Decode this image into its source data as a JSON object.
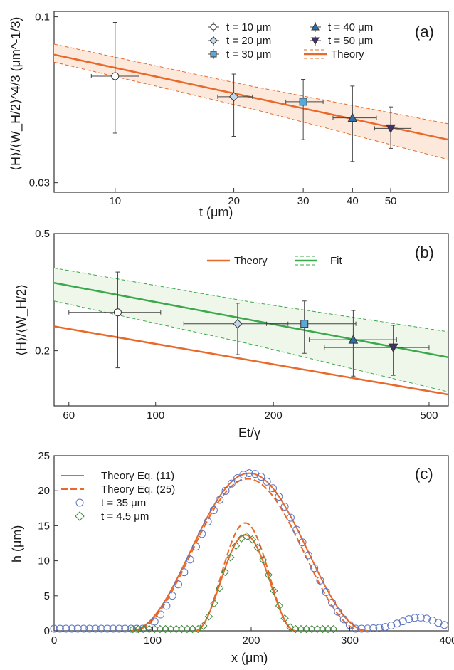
{
  "colors": {
    "theory": "#e8692a",
    "fit": "#3aa84b",
    "band_a": "#fde9dc",
    "band_b": "#eef7ea",
    "marker_t10": "#ffffff",
    "marker_t20": "#c4d6ea",
    "marker_t30": "#5ba8d6",
    "marker_t40": "#2f6fa8",
    "marker_t50": "#45306e",
    "marker_c_t35": "#5b74c0",
    "marker_c_t4_5": "#3f8a3a"
  },
  "chart_data": [
    {
      "type": "scatter",
      "panel_label": "(a)",
      "xlabel": "t (μm)",
      "ylabel": "⟨H⟩/⟨W_H/2⟩^4/3 (μm^-1/3)",
      "xscale": "log",
      "yscale": "log",
      "xlim": [
        7,
        70
      ],
      "ylim": [
        0.028,
        0.104
      ],
      "x_ticks": [
        "10",
        "20",
        "30",
        "40",
        "50"
      ],
      "y_ticks": [
        "0.1",
        "0.03"
      ],
      "legend_position": "top-right",
      "series": [
        {
          "name": "t = 10 μm",
          "marker": "circle",
          "points": [
            {
              "x": 10,
              "y": 0.065,
              "xerr": [
                8.7,
                11.5
              ],
              "yerr": [
                0.043,
                0.096
              ]
            }
          ]
        },
        {
          "name": "t = 20 μm",
          "marker": "diamond",
          "points": [
            {
              "x": 20,
              "y": 0.056,
              "xerr": [
                18.2,
                22.3
              ],
              "yerr": [
                0.042,
                0.066
              ]
            }
          ]
        },
        {
          "name": "t = 30 μm",
          "marker": "square",
          "points": [
            {
              "x": 30,
              "y": 0.054,
              "xerr": [
                27.1,
                33.7
              ],
              "yerr": [
                0.041,
                0.0635
              ]
            }
          ]
        },
        {
          "name": "t = 40 μm",
          "marker": "triangle-up",
          "points": [
            {
              "x": 40,
              "y": 0.048,
              "xerr": [
                35.7,
                46.0
              ],
              "yerr": [
                0.035,
                0.0605
              ]
            }
          ]
        },
        {
          "name": "t = 50 μm",
          "marker": "triangle-down",
          "points": [
            {
              "x": 50,
              "y": 0.0445,
              "xerr": [
                45.5,
                56.3
              ],
              "yerr": [
                0.0385,
                0.052
              ]
            }
          ]
        }
      ],
      "theory": {
        "name": "Theory",
        "x": [
          7,
          70
        ],
        "y": [
          0.076,
          0.041
        ],
        "band_lower": [
          0.072,
          0.0355
        ],
        "band_upper": [
          0.082,
          0.046
        ]
      }
    },
    {
      "type": "scatter",
      "panel_label": "(b)",
      "xlabel": "Et/γ",
      "ylabel": "⟨H⟩/⟨W_H/2⟩",
      "xscale": "log",
      "yscale": "log",
      "xlim": [
        55,
        560
      ],
      "ylim": [
        0.13,
        0.5
      ],
      "x_ticks": [
        "60",
        "100",
        "200",
        "500"
      ],
      "y_ticks": [
        "0.5",
        "0.2"
      ],
      "legend_position": "top-right",
      "series": [
        {
          "name": "",
          "marker": "circle",
          "points": [
            {
              "x": 80,
              "y": 0.27,
              "xerr": [
                60,
                103
              ],
              "yerr": [
                0.175,
                0.37
              ]
            }
          ]
        },
        {
          "name": "",
          "marker": "diamond",
          "points": [
            {
              "x": 162,
              "y": 0.247,
              "xerr": [
                118,
                218
              ],
              "yerr": [
                0.194,
                0.29
              ]
            }
          ]
        },
        {
          "name": "",
          "marker": "square",
          "points": [
            {
              "x": 240,
              "y": 0.247,
              "xerr": [
                192,
                325
              ],
              "yerr": [
                0.196,
                0.295
              ]
            }
          ]
        },
        {
          "name": "",
          "marker": "triangle-up",
          "points": [
            {
              "x": 320,
              "y": 0.218,
              "xerr": [
                247,
                413
              ],
              "yerr": [
                0.164,
                0.274
              ]
            }
          ]
        },
        {
          "name": "",
          "marker": "triangle-down",
          "points": [
            {
              "x": 405,
              "y": 0.205,
              "xerr": [
                270,
                500
              ],
              "yerr": [
                0.165,
                0.244
              ]
            }
          ]
        }
      ],
      "theory": {
        "name": "Theory",
        "x": [
          55,
          560
        ],
        "y": [
          0.242,
          0.142
        ]
      },
      "fit": {
        "name": "Fit",
        "x": [
          55,
          560
        ],
        "y": [
          0.34,
          0.19
        ],
        "band_lower": [
          0.295,
          0.145
        ],
        "band_upper": [
          0.382,
          0.232
        ]
      }
    },
    {
      "type": "line",
      "panel_label": "(c)",
      "xlabel": "x (μm)",
      "ylabel": "h (μm)",
      "xlim": [
        0,
        400
      ],
      "ylim": [
        0,
        25
      ],
      "x_ticks": [
        0,
        100,
        200,
        300,
        400
      ],
      "y_ticks": [
        0,
        5,
        10,
        15,
        20,
        25
      ],
      "legend_position": "top-left",
      "legend": [
        "Theory Eq. (11)",
        "Theory Eq. (25)",
        "t = 35 μm",
        "t = 4.5 μm"
      ],
      "series": [
        {
          "name": "Theory Eq. (11)",
          "style": "solid",
          "curve": "t35",
          "x0": 78,
          "x1": 318,
          "peak": 22.5
        },
        {
          "name": "Theory Eq. (25)",
          "style": "dashed",
          "curve": "t35",
          "x0": 80,
          "x1": 313,
          "peak": 21.7
        },
        {
          "name": "Theory Eq. (11)",
          "style": "solid",
          "curve": "t4_5",
          "x0": 143,
          "x1": 245,
          "peak": 13.7
        },
        {
          "name": "Theory Eq. (25)",
          "style": "dashed",
          "curve": "t4_5",
          "x0": 144,
          "x1": 244,
          "peak": 15.4
        }
      ],
      "scatter": [
        {
          "name": "t = 35 μm",
          "marker": "circle",
          "x_start": 0,
          "x_end": 400,
          "x_step": 6,
          "x0": 84,
          "x1": 314,
          "peak": 22.5,
          "baseline": 0.3,
          "bump_center": 370,
          "bump_height": 1.6
        },
        {
          "name": "t = 4.5 μm",
          "marker": "diamond",
          "x_start": 80,
          "x_end": 285,
          "x_step": 5.5,
          "x0": 144,
          "x1": 246,
          "peak": 13.5,
          "baseline": 0.25
        }
      ]
    }
  ]
}
